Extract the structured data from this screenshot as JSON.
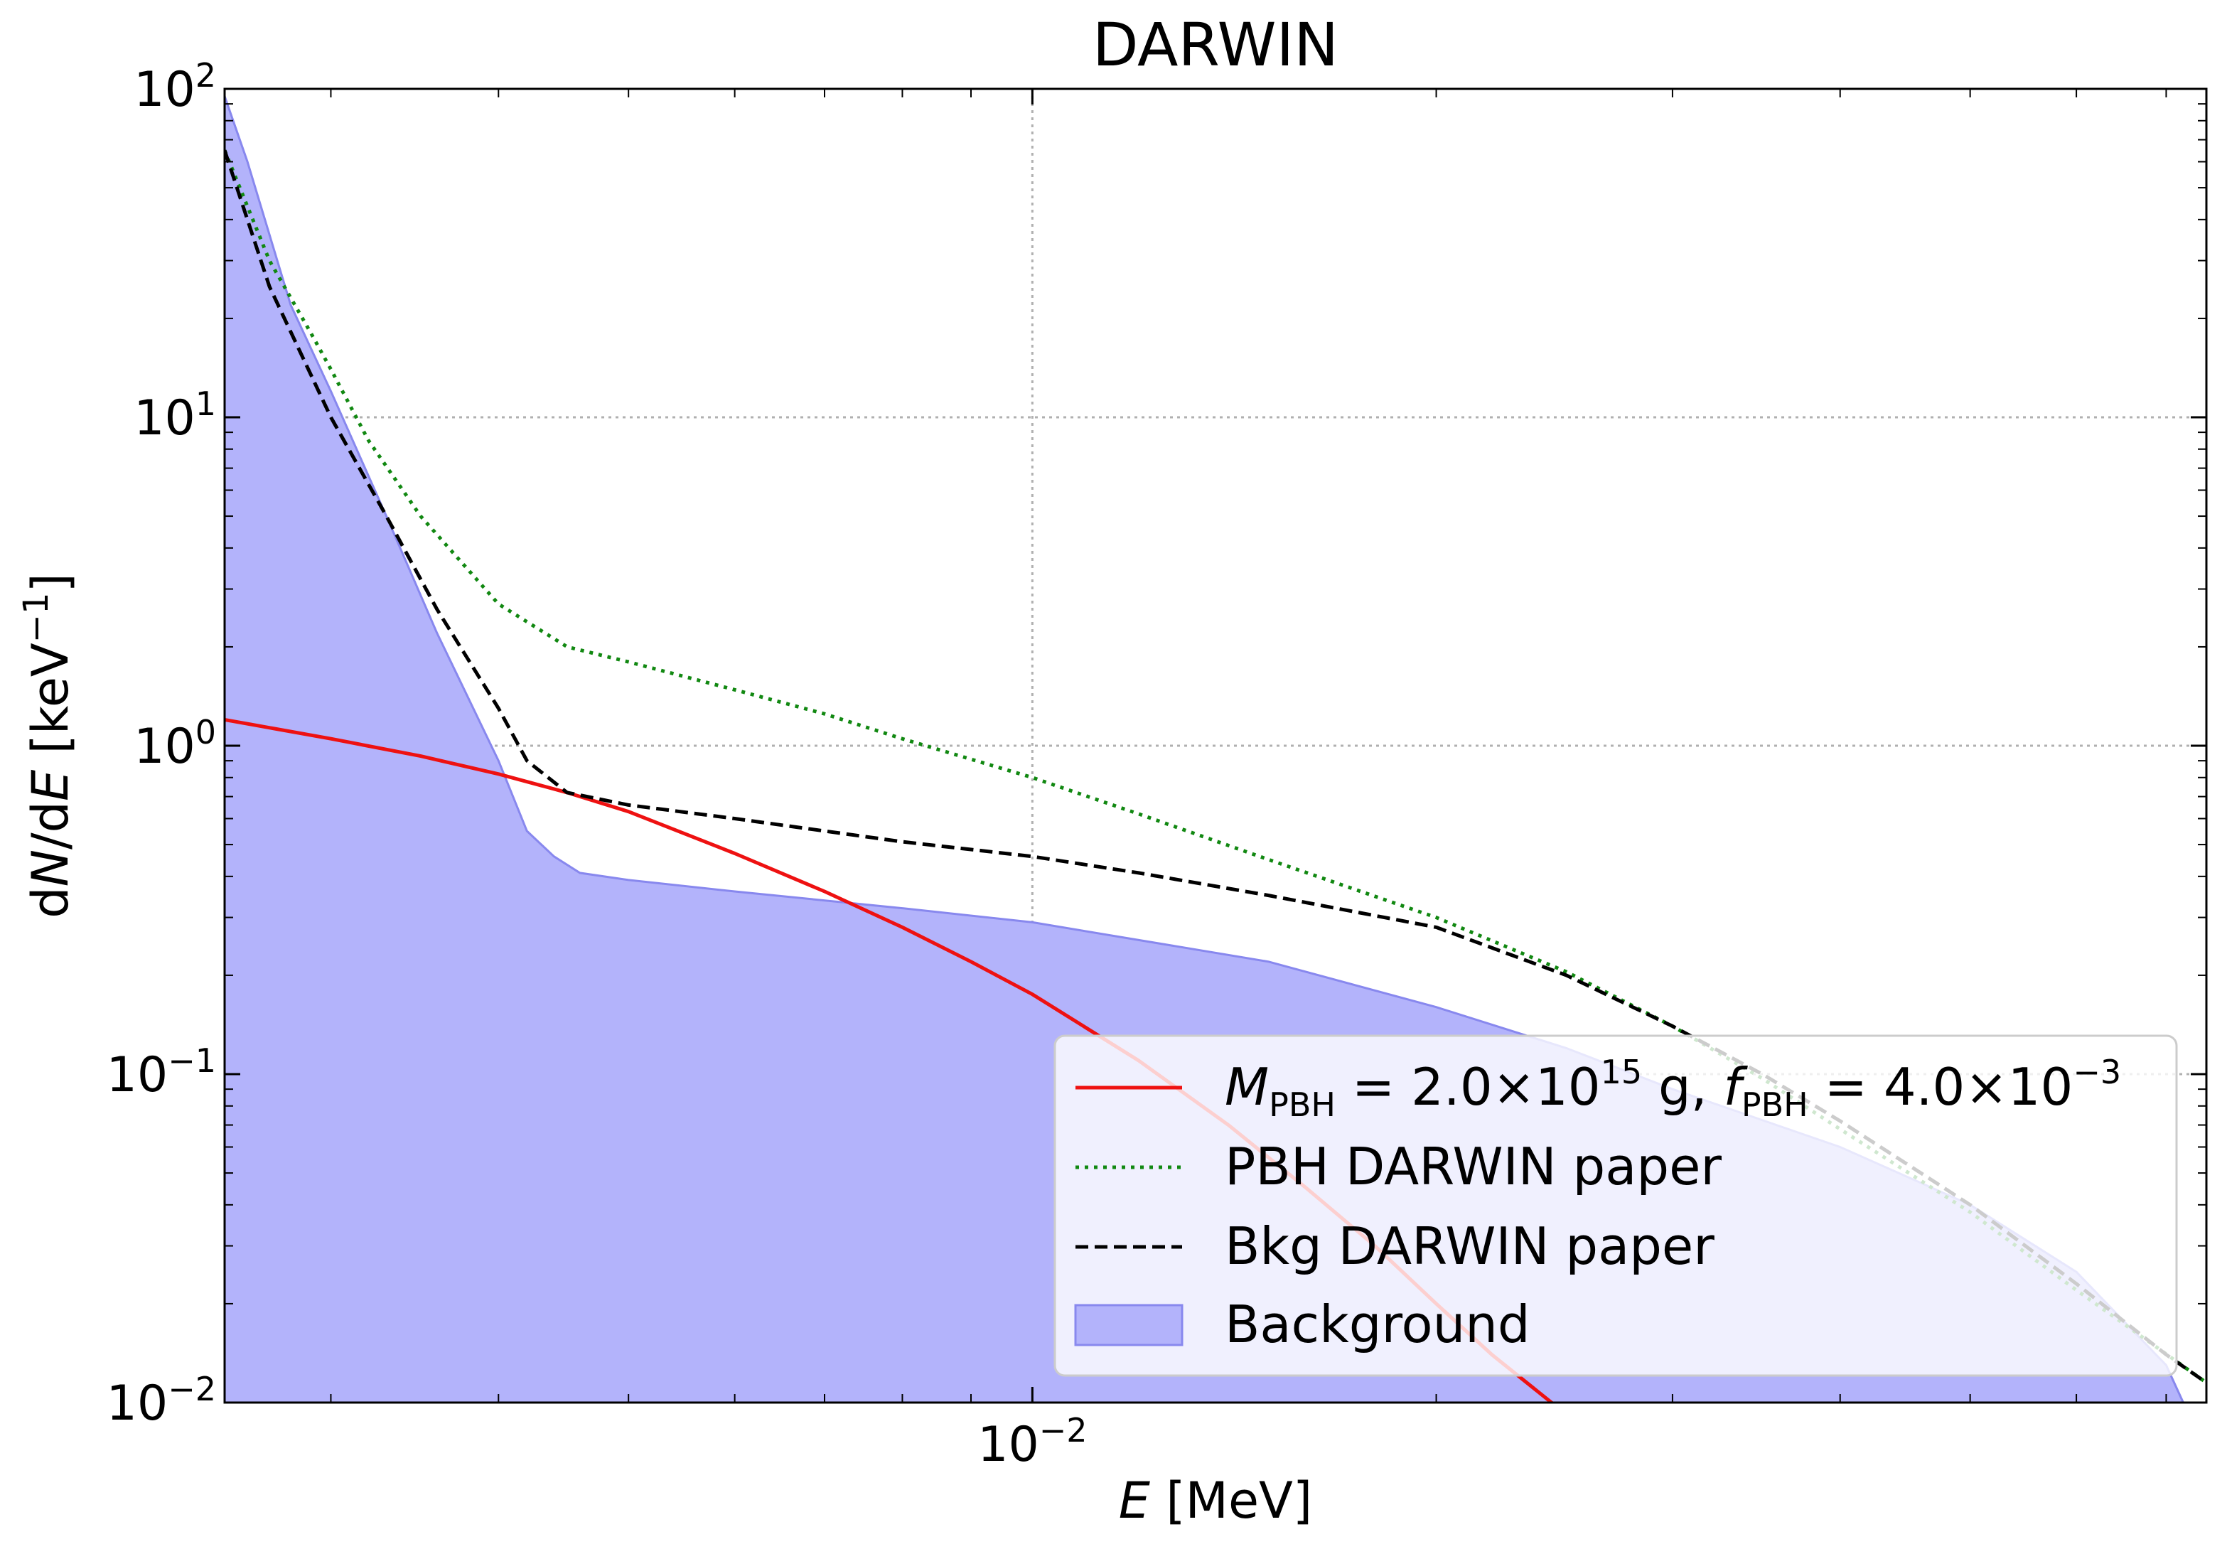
{
  "colors": {
    "pbh_model": "#ee1111",
    "pbh_paper": "#118811",
    "bkg_paper": "#000000",
    "background_fill": "#b3b3fb",
    "background_edge": "#8888ee",
    "grid": "#b0b0b0"
  },
  "chart_data": {
    "type": "line",
    "title": "DARWIN",
    "xlabel": "E [MeV]",
    "ylabel": "dN/dE [keV⁻¹]",
    "xscale": "log",
    "yscale": "log",
    "xlim": [
      0.0025,
      0.075
    ],
    "ylim": [
      0.01,
      100
    ],
    "x_major_ticks": [
      {
        "value": 0.01,
        "base": "10",
        "exp": "−2"
      }
    ],
    "y_major_ticks": [
      {
        "value": 0.01,
        "base": "10",
        "exp": "−2"
      },
      {
        "value": 0.1,
        "base": "10",
        "exp": "−1"
      },
      {
        "value": 1,
        "base": "10",
        "exp": "0"
      },
      {
        "value": 10,
        "base": "10",
        "exp": "1"
      },
      {
        "value": 100,
        "base": "10",
        "exp": "2"
      }
    ],
    "grid": true,
    "legend_position": "lower right",
    "series": [
      {
        "name": "M_PBH = 2.0×10^15 g, f_PBH = 4.0×10^-3",
        "style": "solid",
        "x": [
          0.0025,
          0.003,
          0.0035,
          0.004,
          0.0045,
          0.005,
          0.006,
          0.007,
          0.008,
          0.009,
          0.01,
          0.012,
          0.014,
          0.016,
          0.018,
          0.02,
          0.022,
          0.025
        ],
        "y": [
          1.2,
          1.05,
          0.93,
          0.82,
          0.72,
          0.63,
          0.47,
          0.36,
          0.28,
          0.22,
          0.175,
          0.11,
          0.07,
          0.045,
          0.03,
          0.02,
          0.014,
          0.0092
        ]
      },
      {
        "name": "PBH DARWIN paper",
        "style": "dotted",
        "x": [
          0.0025,
          0.0027,
          0.0029,
          0.003,
          0.0032,
          0.0035,
          0.004,
          0.0045,
          0.005,
          0.006,
          0.007,
          0.008,
          0.01,
          0.012,
          0.015,
          0.02,
          0.025,
          0.03,
          0.035,
          0.04,
          0.05,
          0.06,
          0.075
        ],
        "y": [
          65,
          30,
          18,
          14,
          8.5,
          5.0,
          2.7,
          2.0,
          1.8,
          1.48,
          1.25,
          1.05,
          0.8,
          0.62,
          0.45,
          0.3,
          0.205,
          0.14,
          0.097,
          0.068,
          0.038,
          0.022,
          0.0115
        ]
      },
      {
        "name": "Bkg DARWIN paper",
        "style": "dashed",
        "x": [
          0.0025,
          0.0027,
          0.003,
          0.0033,
          0.0036,
          0.004,
          0.0042,
          0.0045,
          0.005,
          0.006,
          0.007,
          0.008,
          0.01,
          0.012,
          0.015,
          0.02,
          0.025,
          0.03,
          0.035,
          0.04,
          0.05,
          0.06,
          0.07,
          0.075
        ],
        "y": [
          65,
          25,
          10,
          5.0,
          2.6,
          1.3,
          0.9,
          0.72,
          0.66,
          0.6,
          0.55,
          0.51,
          0.46,
          0.41,
          0.35,
          0.28,
          0.2,
          0.14,
          0.1,
          0.072,
          0.04,
          0.023,
          0.014,
          0.0115
        ]
      },
      {
        "name": "Background",
        "style": "fill",
        "x": [
          0.0025,
          0.0026,
          0.0028,
          0.003,
          0.0033,
          0.0036,
          0.004,
          0.0042,
          0.0044,
          0.0046,
          0.005,
          0.006,
          0.008,
          0.01,
          0.015,
          0.02,
          0.025,
          0.03,
          0.04,
          0.05,
          0.06,
          0.07,
          0.0725
        ],
        "y": [
          95,
          60,
          22,
          12,
          5.0,
          2.2,
          0.9,
          0.55,
          0.46,
          0.41,
          0.39,
          0.36,
          0.32,
          0.29,
          0.22,
          0.16,
          0.12,
          0.09,
          0.06,
          0.04,
          0.025,
          0.013,
          0.0095
        ]
      }
    ],
    "legend": {
      "model_label": {
        "m_sym": "M",
        "m_sub": "PBH",
        "m_val": " = 2.0×10",
        "m_exp": "15",
        "m_unit": " g, ",
        "f_sym": "f",
        "f_sub": "PBH",
        "f_val": " = 4.0×10",
        "f_exp": "−3"
      },
      "pbh_paper_label": "PBH DARWIN paper",
      "bkg_paper_label": "Bkg DARWIN paper",
      "background_label": "Background"
    }
  }
}
